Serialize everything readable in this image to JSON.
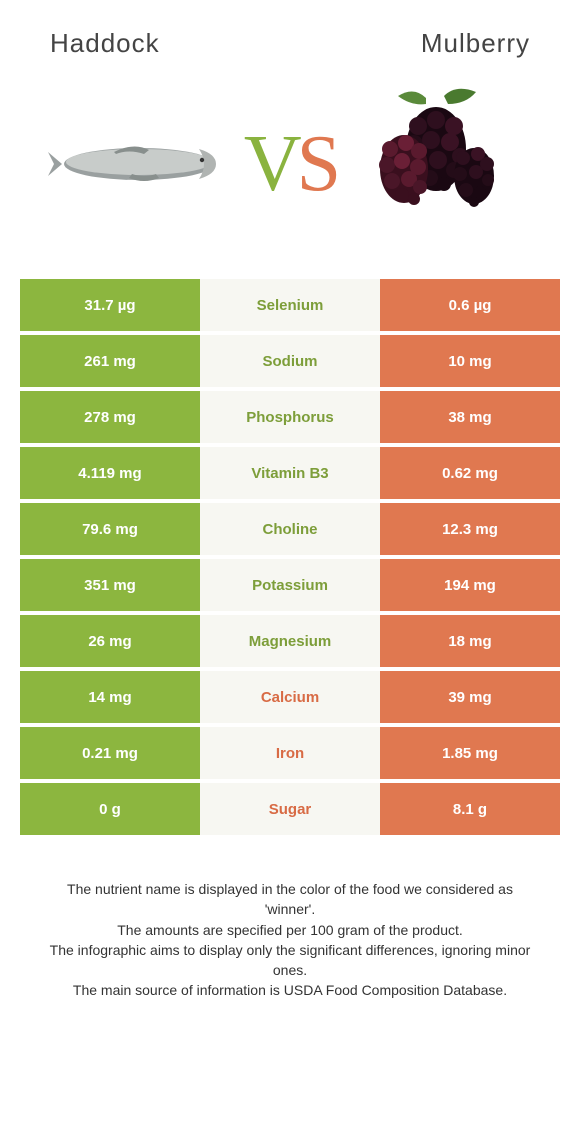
{
  "header": {
    "left_title": "Haddock",
    "right_title": "Mulberry"
  },
  "vs": {
    "v": "V",
    "s": "S"
  },
  "colors": {
    "left": "#8cb63f",
    "right": "#e07850",
    "mid_bg": "#f7f7f2",
    "left_label": "#7d9e3a",
    "right_label": "#d86b45"
  },
  "rows": [
    {
      "left": "31.7 µg",
      "label": "Selenium",
      "right": "0.6 µg",
      "winner": "left"
    },
    {
      "left": "261 mg",
      "label": "Sodium",
      "right": "10 mg",
      "winner": "left"
    },
    {
      "left": "278 mg",
      "label": "Phosphorus",
      "right": "38 mg",
      "winner": "left"
    },
    {
      "left": "4.119 mg",
      "label": "Vitamin B3",
      "right": "0.62 mg",
      "winner": "left"
    },
    {
      "left": "79.6 mg",
      "label": "Choline",
      "right": "12.3 mg",
      "winner": "left"
    },
    {
      "left": "351 mg",
      "label": "Potassium",
      "right": "194 mg",
      "winner": "left"
    },
    {
      "left": "26 mg",
      "label": "Magnesium",
      "right": "18 mg",
      "winner": "left"
    },
    {
      "left": "14 mg",
      "label": "Calcium",
      "right": "39 mg",
      "winner": "right"
    },
    {
      "left": "0.21 mg",
      "label": "Iron",
      "right": "1.85 mg",
      "winner": "right"
    },
    {
      "left": "0 g",
      "label": "Sugar",
      "right": "8.1 g",
      "winner": "right"
    }
  ],
  "footnotes": [
    "The nutrient name is displayed in the color of the food we considered as 'winner'.",
    "The amounts are specified per 100 gram of the product.",
    "The infographic aims to display only the significant differences, ignoring minor ones.",
    "The main source of information is USDA Food Composition Database."
  ]
}
